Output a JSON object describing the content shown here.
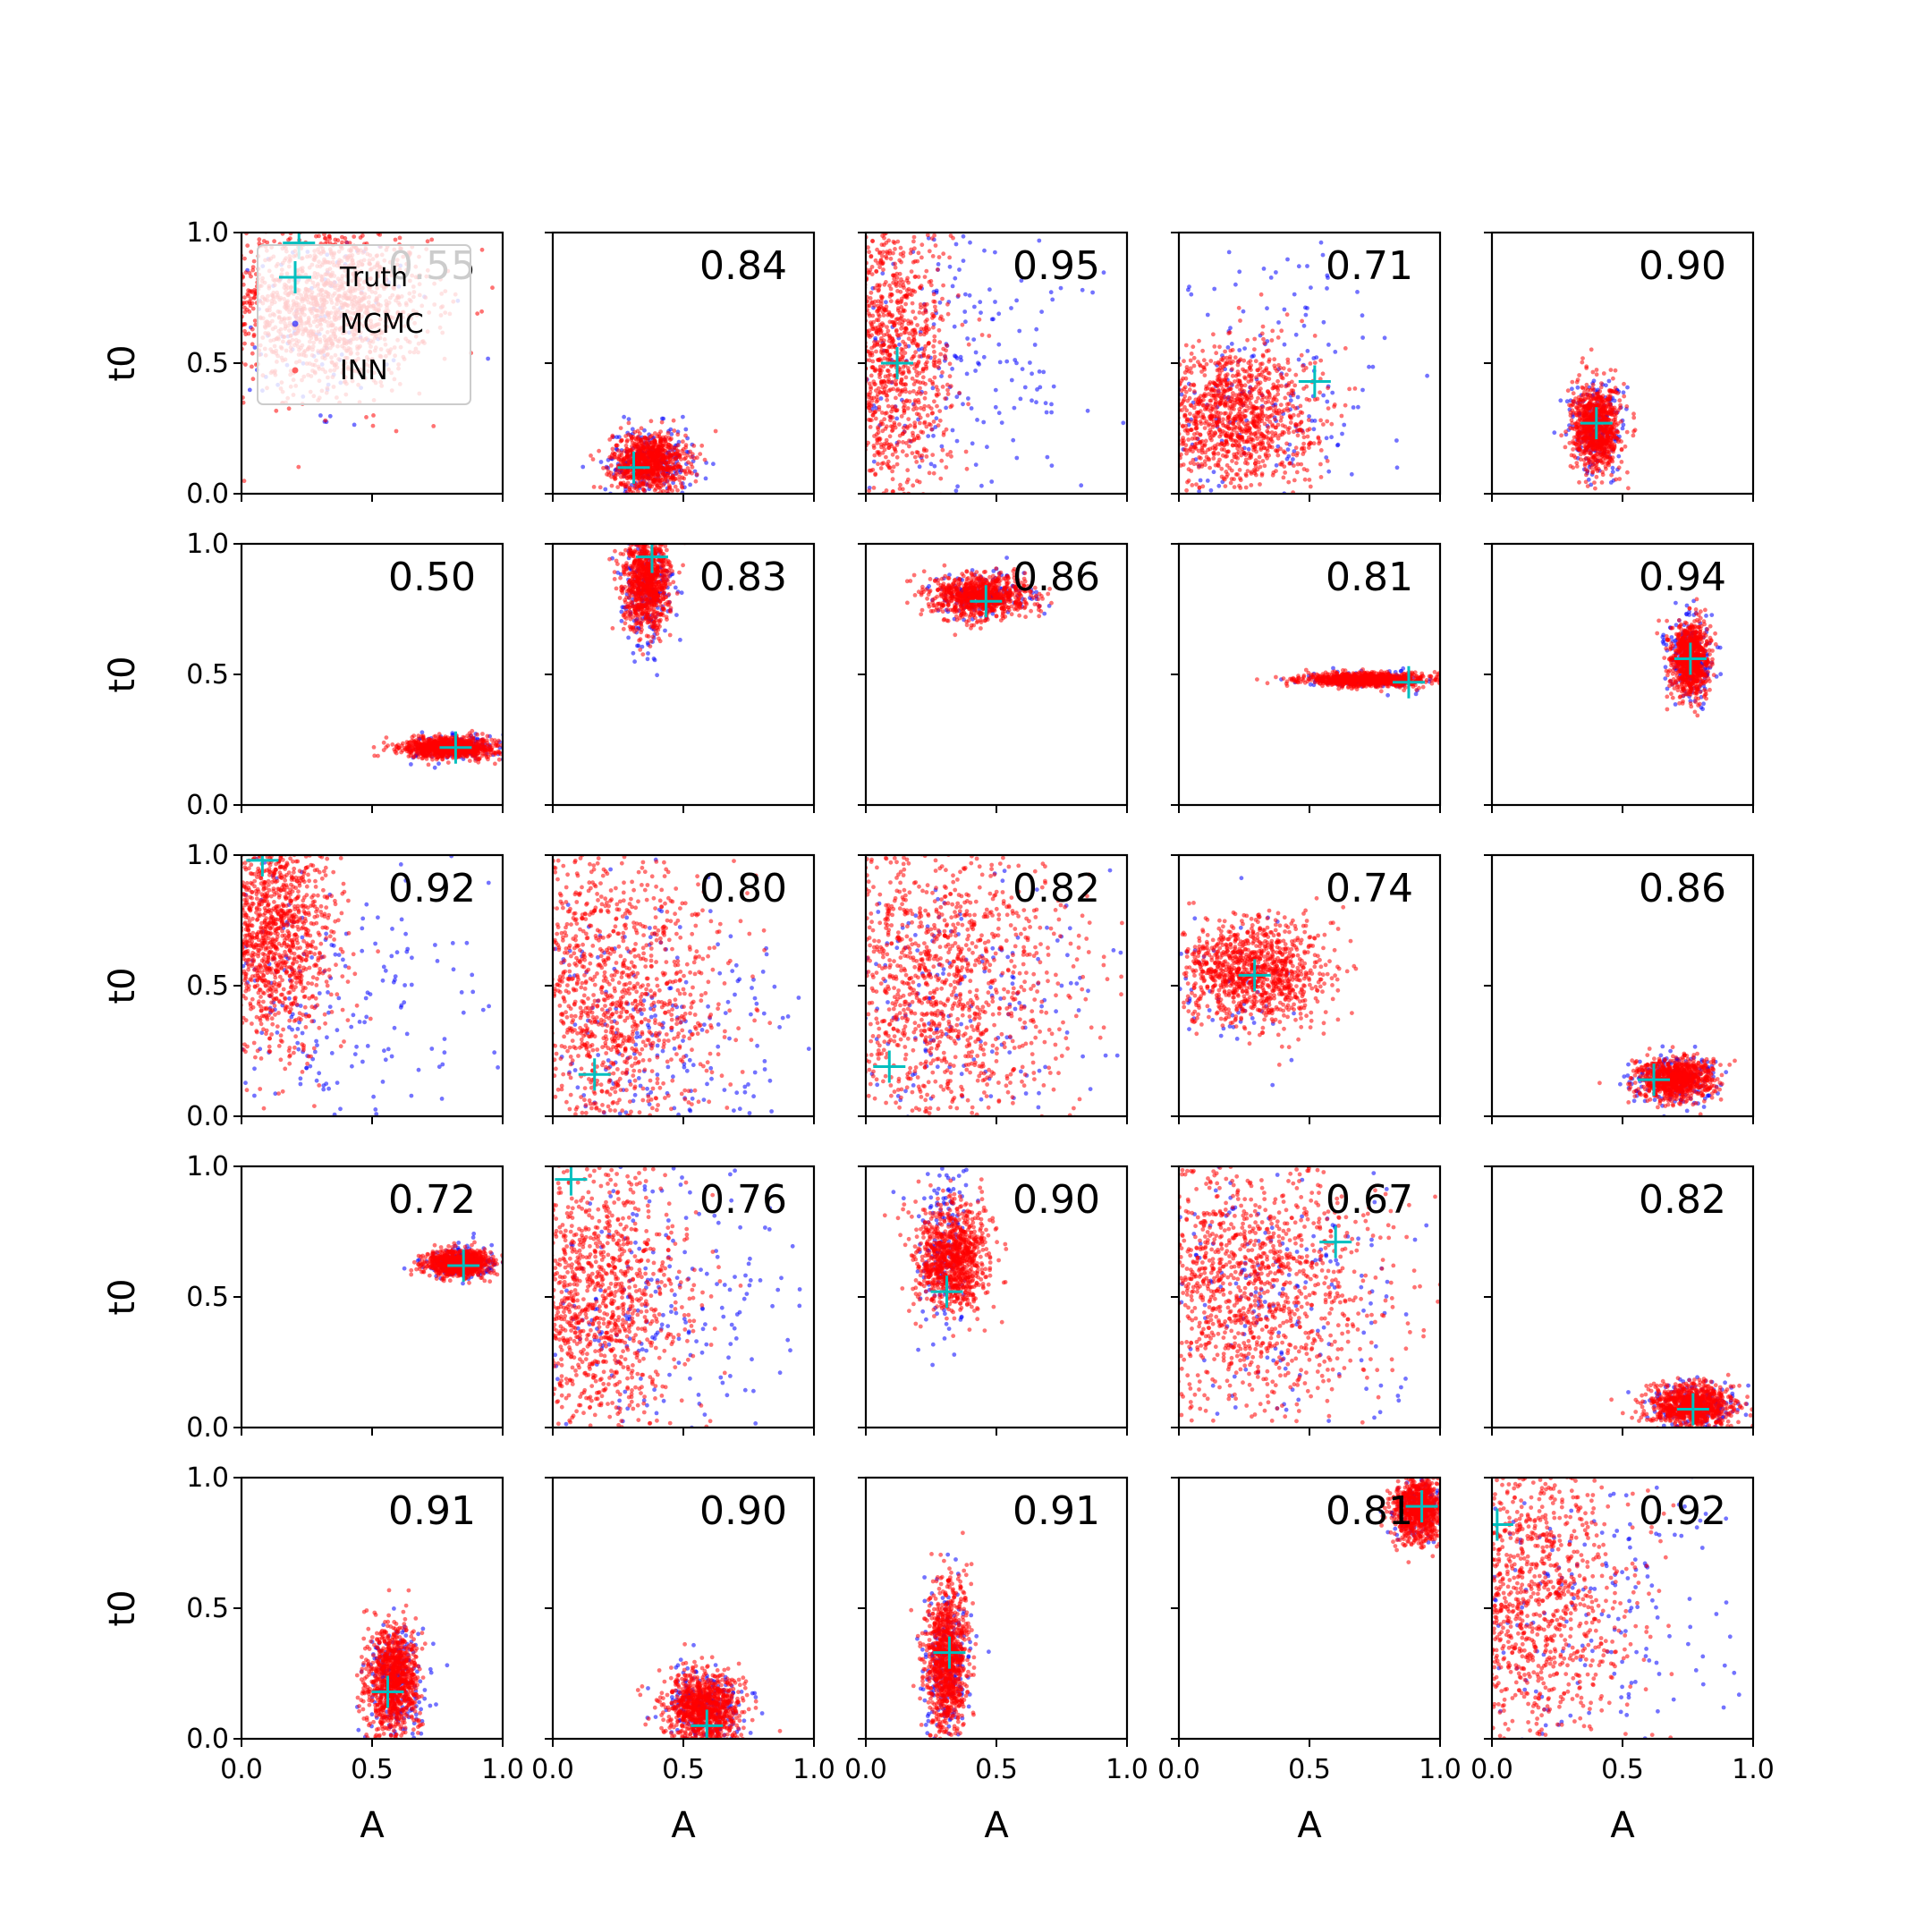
{
  "chart_data": {
    "type": "scatter",
    "grid": [
      5,
      5
    ],
    "xlabel": "A",
    "ylabel": "t0",
    "xlim": [
      0.0,
      1.0
    ],
    "ylim": [
      0.0,
      1.0
    ],
    "xticks": [
      "0.0",
      "0.5",
      "1.0"
    ],
    "yticks": [
      "0.0",
      "0.5",
      "1.0"
    ],
    "legend": {
      "placement": "top-left of first panel",
      "entries": [
        {
          "label": "Truth",
          "color": "#00bfbf",
          "marker": "+"
        },
        {
          "label": "MCMC",
          "color": "#0000ff",
          "marker": "."
        },
        {
          "label": "INN",
          "color": "#ff0000",
          "marker": "."
        }
      ]
    },
    "panels": [
      {
        "score": "0.55",
        "truth": [
          0.22,
          0.96
        ],
        "inn": {
          "cx": 0.32,
          "cy": 0.72,
          "sx": 0.2,
          "sy": 0.16,
          "n": 1400
        },
        "mcmc": {
          "cx": 0.25,
          "cy": 0.7,
          "sx": 0.25,
          "sy": 0.25,
          "n": 120
        }
      },
      {
        "score": "0.84",
        "truth": [
          0.31,
          0.1
        ],
        "inn": {
          "cx": 0.37,
          "cy": 0.12,
          "sx": 0.07,
          "sy": 0.055,
          "n": 900
        },
        "mcmc": {
          "cx": 0.37,
          "cy": 0.12,
          "sx": 0.085,
          "sy": 0.07,
          "n": 220
        }
      },
      {
        "score": "0.95",
        "truth": [
          0.12,
          0.5
        ],
        "inn": {
          "cx": 0.08,
          "cy": 0.5,
          "sx": 0.12,
          "sy": 0.3,
          "n": 1300
        },
        "mcmc": {
          "cx": 0.35,
          "cy": 0.5,
          "sx": 0.3,
          "sy": 0.3,
          "n": 220
        }
      },
      {
        "score": "0.71",
        "truth": [
          0.52,
          0.43
        ],
        "inn": {
          "cx": 0.2,
          "cy": 0.3,
          "sx": 0.16,
          "sy": 0.14,
          "n": 1200
        },
        "mcmc": {
          "cx": 0.3,
          "cy": 0.4,
          "sx": 0.28,
          "sy": 0.28,
          "n": 220
        }
      },
      {
        "score": "0.90",
        "truth": [
          0.4,
          0.27
        ],
        "inn": {
          "cx": 0.4,
          "cy": 0.25,
          "sx": 0.045,
          "sy": 0.08,
          "n": 900
        },
        "mcmc": {
          "cx": 0.4,
          "cy": 0.25,
          "sx": 0.055,
          "sy": 0.09,
          "n": 200
        }
      },
      {
        "score": "0.50",
        "truth": [
          0.82,
          0.22
        ],
        "inn": {
          "cx": 0.8,
          "cy": 0.22,
          "sx": 0.09,
          "sy": 0.02,
          "n": 900
        },
        "mcmc": {
          "cx": 0.82,
          "cy": 0.22,
          "sx": 0.09,
          "sy": 0.025,
          "n": 150
        }
      },
      {
        "score": "0.83",
        "truth": [
          0.38,
          0.95
        ],
        "inn": {
          "cx": 0.36,
          "cy": 0.85,
          "sx": 0.045,
          "sy": 0.09,
          "n": 900
        },
        "mcmc": {
          "cx": 0.36,
          "cy": 0.82,
          "sx": 0.05,
          "sy": 0.11,
          "n": 200
        }
      },
      {
        "score": "0.86",
        "truth": [
          0.46,
          0.78
        ],
        "inn": {
          "cx": 0.44,
          "cy": 0.8,
          "sx": 0.09,
          "sy": 0.04,
          "n": 900
        },
        "mcmc": {
          "cx": 0.46,
          "cy": 0.8,
          "sx": 0.1,
          "sy": 0.045,
          "n": 150
        }
      },
      {
        "score": "0.81",
        "truth": [
          0.88,
          0.47
        ],
        "inn": {
          "cx": 0.72,
          "cy": 0.48,
          "sx": 0.12,
          "sy": 0.013,
          "n": 900
        },
        "mcmc": {
          "cx": 0.75,
          "cy": 0.48,
          "sx": 0.12,
          "sy": 0.015,
          "n": 150
        }
      },
      {
        "score": "0.94",
        "truth": [
          0.76,
          0.56
        ],
        "inn": {
          "cx": 0.76,
          "cy": 0.56,
          "sx": 0.035,
          "sy": 0.07,
          "n": 900
        },
        "mcmc": {
          "cx": 0.76,
          "cy": 0.56,
          "sx": 0.045,
          "sy": 0.08,
          "n": 200
        }
      },
      {
        "score": "0.92",
        "truth": [
          0.08,
          0.98
        ],
        "inn": {
          "cx": 0.12,
          "cy": 0.7,
          "sx": 0.12,
          "sy": 0.22,
          "n": 1300
        },
        "mcmc": {
          "cx": 0.3,
          "cy": 0.4,
          "sx": 0.3,
          "sy": 0.3,
          "n": 220
        }
      },
      {
        "score": "0.80",
        "truth": [
          0.16,
          0.16
        ],
        "inn": {
          "cx": 0.2,
          "cy": 0.45,
          "sx": 0.22,
          "sy": 0.28,
          "n": 1300
        },
        "mcmc": {
          "cx": 0.4,
          "cy": 0.3,
          "sx": 0.3,
          "sy": 0.3,
          "n": 260
        }
      },
      {
        "score": "0.82",
        "truth": [
          0.09,
          0.19
        ],
        "inn": {
          "cx": 0.25,
          "cy": 0.5,
          "sx": 0.26,
          "sy": 0.3,
          "n": 1400
        },
        "mcmc": {
          "cx": 0.35,
          "cy": 0.45,
          "sx": 0.3,
          "sy": 0.3,
          "n": 220
        }
      },
      {
        "score": "0.74",
        "truth": [
          0.29,
          0.54
        ],
        "inn": {
          "cx": 0.28,
          "cy": 0.55,
          "sx": 0.14,
          "sy": 0.1,
          "n": 1100
        },
        "mcmc": {
          "cx": 0.2,
          "cy": 0.5,
          "sx": 0.15,
          "sy": 0.15,
          "n": 60
        }
      },
      {
        "score": "0.86",
        "truth": [
          0.62,
          0.14
        ],
        "inn": {
          "cx": 0.7,
          "cy": 0.14,
          "sx": 0.07,
          "sy": 0.04,
          "n": 900
        },
        "mcmc": {
          "cx": 0.7,
          "cy": 0.14,
          "sx": 0.08,
          "sy": 0.05,
          "n": 180
        }
      },
      {
        "score": "0.72",
        "truth": [
          0.85,
          0.62
        ],
        "inn": {
          "cx": 0.83,
          "cy": 0.63,
          "sx": 0.06,
          "sy": 0.025,
          "n": 900
        },
        "mcmc": {
          "cx": 0.85,
          "cy": 0.63,
          "sx": 0.07,
          "sy": 0.03,
          "n": 180
        }
      },
      {
        "score": "0.76",
        "truth": [
          0.07,
          0.95
        ],
        "inn": {
          "cx": 0.15,
          "cy": 0.5,
          "sx": 0.18,
          "sy": 0.28,
          "n": 1300
        },
        "mcmc": {
          "cx": 0.4,
          "cy": 0.5,
          "sx": 0.3,
          "sy": 0.25,
          "n": 220
        }
      },
      {
        "score": "0.90",
        "truth": [
          0.31,
          0.52
        ],
        "inn": {
          "cx": 0.33,
          "cy": 0.65,
          "sx": 0.07,
          "sy": 0.1,
          "n": 1000
        },
        "mcmc": {
          "cx": 0.3,
          "cy": 0.72,
          "sx": 0.05,
          "sy": 0.16,
          "n": 150
        }
      },
      {
        "score": "0.67",
        "truth": [
          0.6,
          0.71
        ],
        "inn": {
          "cx": 0.25,
          "cy": 0.55,
          "sx": 0.25,
          "sy": 0.25,
          "n": 1400
        },
        "mcmc": {
          "cx": 0.35,
          "cy": 0.5,
          "sx": 0.3,
          "sy": 0.3,
          "n": 220
        }
      },
      {
        "score": "0.82",
        "truth": [
          0.77,
          0.07
        ],
        "inn": {
          "cx": 0.77,
          "cy": 0.08,
          "sx": 0.08,
          "sy": 0.04,
          "n": 900
        },
        "mcmc": {
          "cx": 0.77,
          "cy": 0.08,
          "sx": 0.09,
          "sy": 0.045,
          "n": 180
        }
      },
      {
        "score": "0.91",
        "truth": [
          0.56,
          0.18
        ],
        "inn": {
          "cx": 0.58,
          "cy": 0.22,
          "sx": 0.05,
          "sy": 0.11,
          "n": 1000
        },
        "mcmc": {
          "cx": 0.6,
          "cy": 0.22,
          "sx": 0.06,
          "sy": 0.12,
          "n": 200
        }
      },
      {
        "score": "0.90",
        "truth": [
          0.59,
          0.05
        ],
        "inn": {
          "cx": 0.58,
          "cy": 0.12,
          "sx": 0.07,
          "sy": 0.07,
          "n": 1000
        },
        "mcmc": {
          "cx": 0.58,
          "cy": 0.12,
          "sx": 0.08,
          "sy": 0.075,
          "n": 200
        }
      },
      {
        "score": "0.91",
        "truth": [
          0.32,
          0.33
        ],
        "inn": {
          "cx": 0.31,
          "cy": 0.3,
          "sx": 0.04,
          "sy": 0.14,
          "n": 1000
        },
        "mcmc": {
          "cx": 0.31,
          "cy": 0.28,
          "sx": 0.05,
          "sy": 0.15,
          "n": 200
        }
      },
      {
        "score": "0.81",
        "truth": [
          0.93,
          0.89
        ],
        "inn": {
          "cx": 0.92,
          "cy": 0.88,
          "sx": 0.05,
          "sy": 0.06,
          "n": 900
        },
        "mcmc": {
          "cx": 0.92,
          "cy": 0.88,
          "sx": 0.05,
          "sy": 0.06,
          "n": 120
        }
      },
      {
        "score": "0.92",
        "truth": [
          0.02,
          0.82
        ],
        "inn": {
          "cx": 0.12,
          "cy": 0.55,
          "sx": 0.2,
          "sy": 0.28,
          "n": 1300
        },
        "mcmc": {
          "cx": 0.35,
          "cy": 0.55,
          "sx": 0.3,
          "sy": 0.3,
          "n": 220
        }
      }
    ]
  }
}
